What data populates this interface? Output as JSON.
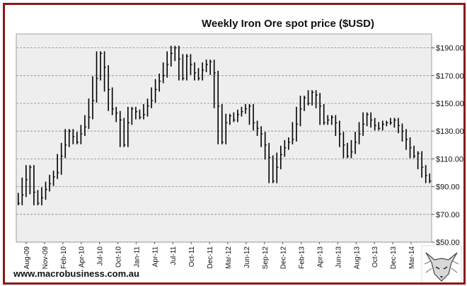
{
  "chart_data": {
    "type": "line",
    "style": "weekly high-low bars",
    "title": "Weekly Iron Ore spot price ($USD)",
    "xlabel": "",
    "ylabel": "",
    "ylim": [
      50,
      200
    ],
    "y_ticks": [
      "$50.00",
      "$70.00",
      "$90.00",
      "$110.00",
      "$130.00",
      "$150.00",
      "$170.00",
      "$190.00"
    ],
    "y_tick_values": [
      50,
      70,
      90,
      110,
      130,
      150,
      170,
      190
    ],
    "x_ticks": [
      "Aug-09",
      "Nov-09",
      "Feb-10",
      "Apr-10",
      "Jul-10",
      "Oct-10",
      "Jan-11",
      "Apr-11",
      "Jul-11",
      "Oct-11",
      "Dec-11",
      "Mar-12",
      "Jun-12",
      "Sep-12",
      "Dec-12",
      "Feb-13",
      "Apr-13",
      "Jun-13",
      "Aug-13",
      "Oct-13",
      "Dec-13",
      "Mar-14"
    ],
    "y_grid": true,
    "y_axis_side": "right",
    "plot_background": "#eeeeee",
    "bar_color": "#000000",
    "series": [
      {
        "values": [
          78,
          84,
          95,
          104,
          86,
          78,
          82,
          88,
          92,
          97,
          100,
          112,
          120,
          130,
          126,
          122,
          128,
          133,
          140,
          152,
          168,
          186,
          176,
          160,
          146,
          143,
          138,
          120,
          136,
          146,
          144,
          140,
          142,
          148,
          152,
          160,
          166,
          170,
          178,
          186,
          190,
          182,
          168,
          184,
          178,
          172,
          168,
          174,
          178,
          180,
          172,
          148,
          122,
          136,
          141,
          138,
          142,
          144,
          146,
          148,
          136,
          132,
          128,
          120,
          111,
          94,
          104,
          113,
          118,
          122,
          124,
          135,
          146,
          154,
          150,
          158,
          156,
          148,
          136,
          138,
          140,
          136,
          128,
          120,
          112,
          115,
          122,
          128,
          135,
          142,
          138,
          134,
          132,
          135,
          136,
          136,
          138,
          134,
          130,
          124,
          118,
          112,
          114,
          104,
          98,
          94
        ]
      }
    ],
    "website": "www.macrobusiness.com.au",
    "logo": "fox-icon"
  }
}
